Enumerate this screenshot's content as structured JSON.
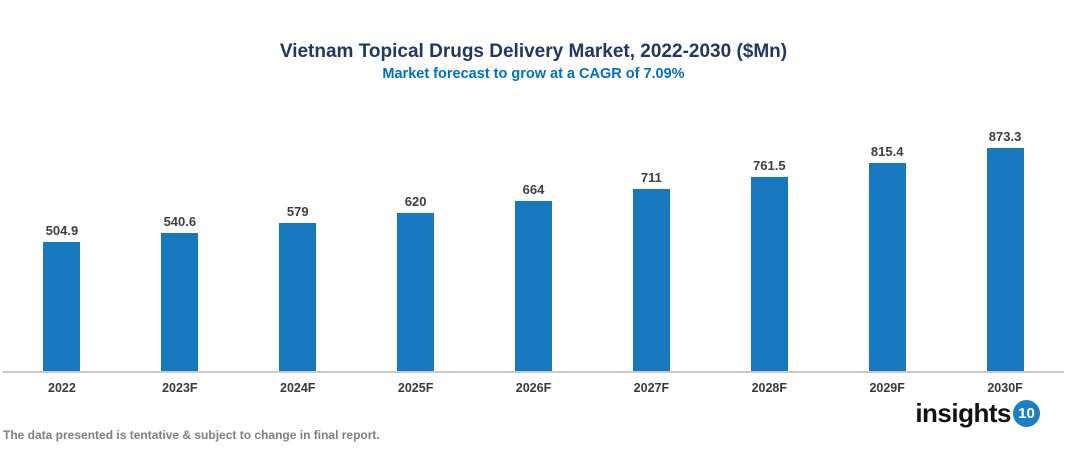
{
  "header": {
    "title": "Vietnam Topical Drugs Delivery Market, 2022-2030 ($Mn)",
    "subtitle": "Market forecast to grow at a CAGR of 7.09%"
  },
  "chart_data": {
    "type": "bar",
    "categories": [
      "2022",
      "2023F",
      "2024F",
      "2025F",
      "2026F",
      "2027F",
      "2028F",
      "2029F",
      "2030F"
    ],
    "values": [
      504.9,
      540.6,
      579,
      620,
      664,
      711,
      761.5,
      815.4,
      873.3
    ],
    "value_labels": [
      "504.9",
      "540.6",
      "579",
      "620",
      "664",
      "711",
      "761.5",
      "815.4",
      "873.3"
    ],
    "title": "Vietnam Topical Drugs Delivery Market, 2022-2030 ($Mn)",
    "subtitle": "Market forecast to grow at a CAGR of 7.09%",
    "xlabel": "",
    "ylabel": "",
    "ylim": [
      0,
      1000
    ],
    "grid": false,
    "legend": "none",
    "bar_color": "#1878be",
    "axis_line_color": "#c9c9c9"
  },
  "footer": {
    "disclaimer": "The data presented is tentative & subject to change in final report.",
    "logo_text": "insights",
    "logo_badge": "10"
  },
  "colors": {
    "bar": "#1878be",
    "title": "#1f3864",
    "subtitle": "#0070c0",
    "axis": "#c9c9c9",
    "data_label": "#3f3f3f",
    "footnote": "#7f7f7f",
    "logo_badge_bg": "#1b7fc4"
  }
}
